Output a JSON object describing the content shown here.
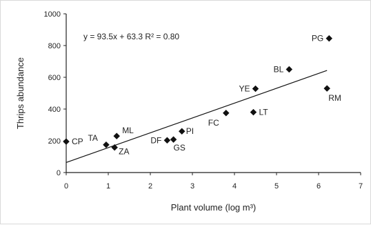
{
  "chart_data": {
    "type": "scatter",
    "title": "",
    "xlabel": "Plant volume (log m³)",
    "ylabel": "Thrips abundance",
    "xlim": [
      0,
      7
    ],
    "ylim": [
      0,
      1000
    ],
    "xticks": [
      0,
      1,
      2,
      3,
      4,
      5,
      6,
      7
    ],
    "yticks": [
      0,
      200,
      400,
      600,
      800,
      1000
    ],
    "grid": false,
    "legend": "none",
    "annotation": "y = 93.5x + 63.3    R² = 0.80",
    "trendline": {
      "slope": 93.5,
      "intercept": 63.3,
      "x_range": [
        0,
        6.2
      ]
    },
    "points": [
      {
        "label": "CP",
        "x": 0.0,
        "y": 195
      },
      {
        "label": "TA",
        "x": 0.95,
        "y": 175
      },
      {
        "label": "ML",
        "x": 1.2,
        "y": 230
      },
      {
        "label": "ZA",
        "x": 1.15,
        "y": 158
      },
      {
        "label": "DF",
        "x": 2.4,
        "y": 203
      },
      {
        "label": "GS",
        "x": 2.55,
        "y": 208
      },
      {
        "label": "PI",
        "x": 2.75,
        "y": 260
      },
      {
        "label": "FC",
        "x": 3.8,
        "y": 375
      },
      {
        "label": "LT",
        "x": 4.45,
        "y": 380
      },
      {
        "label": "YE",
        "x": 4.5,
        "y": 528
      },
      {
        "label": "BL",
        "x": 5.3,
        "y": 650
      },
      {
        "label": "RM",
        "x": 6.2,
        "y": 530
      },
      {
        "label": "PG",
        "x": 6.25,
        "y": 845
      }
    ]
  }
}
